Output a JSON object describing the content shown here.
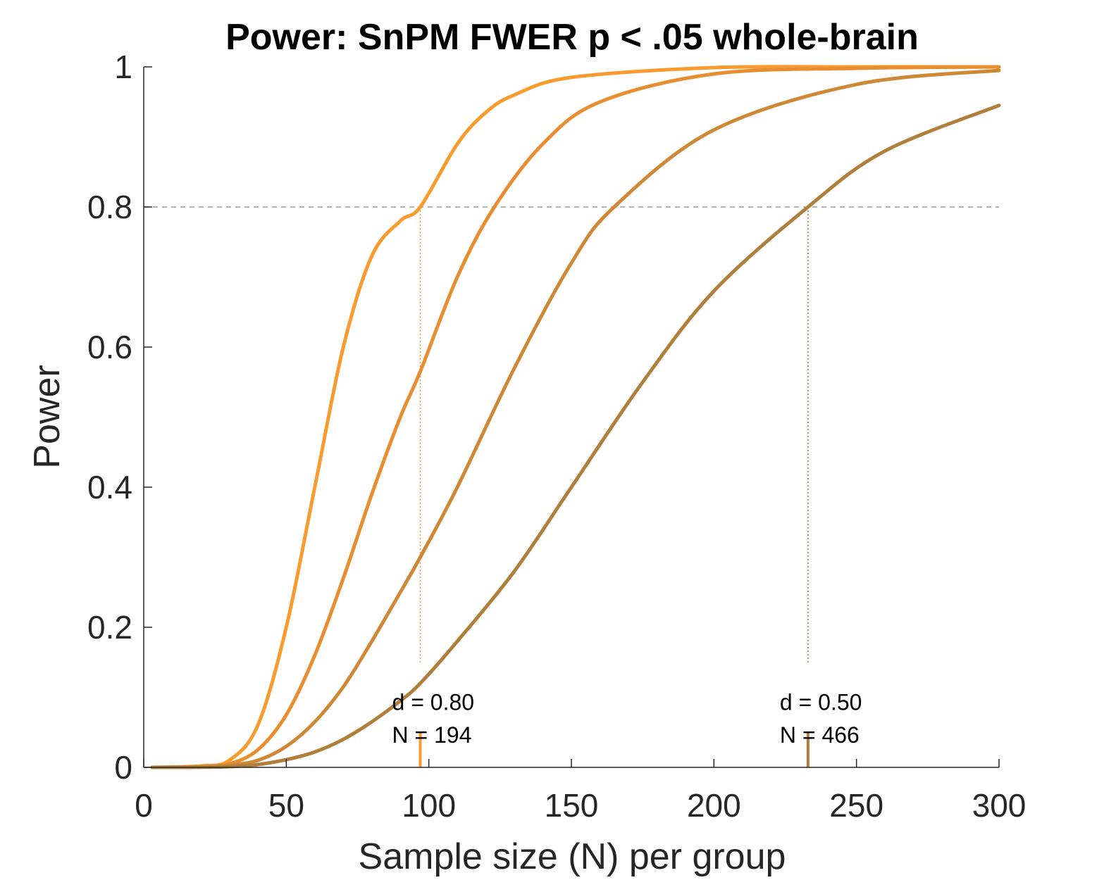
{
  "chart_data": {
    "type": "line",
    "title": "Power: SnPM FWER p < .05 whole-brain",
    "xlabel": "Sample size (N) per group",
    "ylabel": "Power",
    "xlim": [
      0,
      300
    ],
    "ylim": [
      0,
      1
    ],
    "xticks": [
      0,
      50,
      100,
      150,
      200,
      250,
      300
    ],
    "yticks": [
      0,
      0.2,
      0.4,
      0.6,
      0.8,
      1
    ],
    "ytick_labels": [
      "0",
      "0.2",
      "0.4",
      "0.6",
      "0.8",
      "1"
    ],
    "grid": false,
    "reference_line": {
      "y": 0.8,
      "style": "dashed",
      "color": "#9a9a9a"
    },
    "series": [
      {
        "color": "#f99b2f",
        "x": [
          3,
          20,
          30,
          40,
          50,
          60,
          70,
          80,
          90,
          97,
          110,
          120,
          130,
          150,
          200,
          250,
          300
        ],
        "y": [
          0,
          0.002,
          0.01,
          0.06,
          0.2,
          0.4,
          0.6,
          0.73,
          0.78,
          0.8,
          0.89,
          0.935,
          0.96,
          0.985,
          0.999,
          1.0,
          1.0
        ]
      },
      {
        "color": "#e88e31",
        "x": [
          3,
          20,
          30,
          40,
          50,
          60,
          70,
          80,
          90,
          97,
          110,
          123,
          140,
          160,
          200,
          250,
          300
        ],
        "y": [
          0,
          0.001,
          0.005,
          0.025,
          0.075,
          0.16,
          0.27,
          0.39,
          0.5,
          0.565,
          0.7,
          0.8,
          0.89,
          0.95,
          0.99,
          0.998,
          1.0
        ]
      },
      {
        "color": "#cf8836",
        "x": [
          3,
          20,
          30,
          40,
          50,
          60,
          70,
          80,
          90,
          97,
          110,
          130,
          150,
          165,
          200,
          250,
          300
        ],
        "y": [
          0,
          0.0005,
          0.003,
          0.01,
          0.03,
          0.065,
          0.115,
          0.18,
          0.25,
          0.3,
          0.4,
          0.57,
          0.72,
          0.8,
          0.91,
          0.975,
          0.995
        ]
      },
      {
        "color": "#b07f3b",
        "x": [
          3,
          20,
          30,
          40,
          50,
          60,
          70,
          80,
          90,
          97,
          110,
          130,
          150,
          175,
          200,
          233,
          260,
          300
        ],
        "y": [
          0,
          0.0002,
          0.001,
          0.004,
          0.011,
          0.022,
          0.04,
          0.065,
          0.095,
          0.12,
          0.18,
          0.28,
          0.4,
          0.55,
          0.68,
          0.8,
          0.88,
          0.945
        ]
      }
    ],
    "markers": [
      {
        "x": 97,
        "y_top": 0.8,
        "y_drop_end": 0.15,
        "stub_height": 0.05,
        "color": "#f99b2f",
        "line1": "d = 0.80",
        "line2": "N = 194"
      },
      {
        "x": 233,
        "y_top": 0.8,
        "y_drop_end": 0.15,
        "stub_height": 0.05,
        "color": "#b07f3b",
        "line1": "d = 0.50",
        "line2": "N = 466"
      }
    ]
  }
}
